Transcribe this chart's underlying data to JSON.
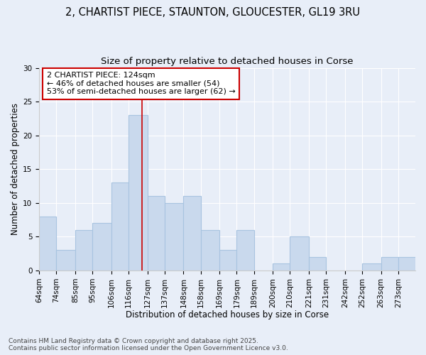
{
  "title1": "2, CHARTIST PIECE, STAUNTON, GLOUCESTER, GL19 3RU",
  "title2": "Size of property relative to detached houses in Corse",
  "xlabel": "Distribution of detached houses by size in Corse",
  "ylabel": "Number of detached properties",
  "categories": [
    "64sqm",
    "74sqm",
    "85sqm",
    "95sqm",
    "106sqm",
    "116sqm",
    "127sqm",
    "137sqm",
    "148sqm",
    "158sqm",
    "169sqm",
    "179sqm",
    "189sqm",
    "200sqm",
    "210sqm",
    "221sqm",
    "231sqm",
    "242sqm",
    "252sqm",
    "263sqm",
    "273sqm"
  ],
  "values": [
    8,
    3,
    6,
    7,
    13,
    23,
    11,
    10,
    11,
    6,
    3,
    6,
    0,
    1,
    5,
    2,
    0,
    0,
    1,
    2,
    2
  ],
  "bar_color": "#c9d9ed",
  "bar_edge_color": "#a8c4e0",
  "reference_line_x": 124,
  "bin_edges": [
    64,
    74,
    85,
    95,
    106,
    116,
    127,
    137,
    148,
    158,
    169,
    179,
    189,
    200,
    210,
    221,
    231,
    242,
    252,
    263,
    273,
    283
  ],
  "annotation_text": "2 CHARTIST PIECE: 124sqm\n← 46% of detached houses are smaller (54)\n53% of semi-detached houses are larger (62) →",
  "annotation_box_color": "#ffffff",
  "annotation_box_edge_color": "#cc0000",
  "ref_line_color": "#cc0000",
  "ylim": [
    0,
    30
  ],
  "yticks": [
    0,
    5,
    10,
    15,
    20,
    25,
    30
  ],
  "background_color": "#e8eef8",
  "footer_text": "Contains HM Land Registry data © Crown copyright and database right 2025.\nContains public sector information licensed under the Open Government Licence v3.0.",
  "title_fontsize": 10.5,
  "subtitle_fontsize": 9.5,
  "axis_label_fontsize": 8.5,
  "tick_fontsize": 7.5,
  "annotation_fontsize": 8,
  "footer_fontsize": 6.5
}
